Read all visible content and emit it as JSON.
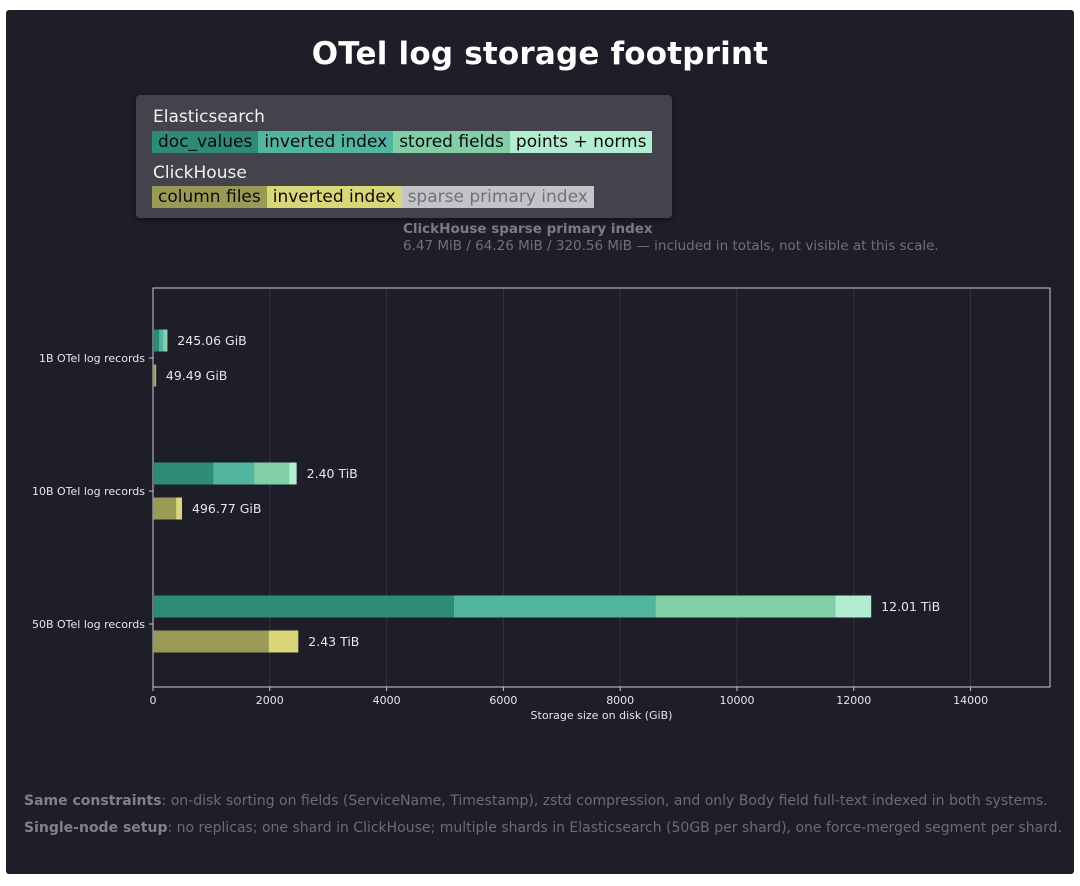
{
  "title": "OTel log storage footprint",
  "legend": {
    "groups": [
      {
        "name": "Elasticsearch",
        "items": [
          {
            "label": "doc_values",
            "color": "#2e8b78",
            "text_color": "#0b0b0b"
          },
          {
            "label": "inverted index",
            "color": "#52b5a0",
            "text_color": "#0b0b0b"
          },
          {
            "label": "stored fields",
            "color": "#80cfa6",
            "text_color": "#0b0b0b"
          },
          {
            "label": "points + norms",
            "color": "#b2edd2",
            "text_color": "#0b0b0b"
          }
        ]
      },
      {
        "name": "ClickHouse",
        "items": [
          {
            "label": "column files",
            "color": "#9a9a57",
            "text_color": "#0b0b0b"
          },
          {
            "label": "inverted index",
            "color": "#d8d878",
            "text_color": "#0b0b0b"
          },
          {
            "label": "sparse primary index",
            "color": "#c3c4c8",
            "text_color": "#70717a"
          }
        ]
      }
    ]
  },
  "note": {
    "heading": "ClickHouse sparse primary index",
    "text": "6.47 MiB / 64.26 MiB / 320.56 MiB — included in totals, not visible at this scale."
  },
  "chart_data": {
    "type": "bar",
    "orientation": "horizontal",
    "stacked": true,
    "xlabel": "Storage size on disk (GiB)",
    "xlim": [
      0,
      15360
    ],
    "xticks": [
      0,
      2000,
      4000,
      6000,
      8000,
      10000,
      12000,
      14000
    ],
    "grid": "vertical",
    "categories": [
      "1B OTel log records",
      "10B OTel log records",
      "50B OTel log records"
    ],
    "bars": [
      {
        "category": 0,
        "system": "Elasticsearch",
        "label": "245.06 GiB",
        "segments": [
          {
            "name": "doc_values",
            "value": 102
          },
          {
            "name": "inverted index",
            "value": 70
          },
          {
            "name": "stored fields",
            "value": 60
          },
          {
            "name": "points + norms",
            "value": 13
          }
        ]
      },
      {
        "category": 0,
        "system": "ClickHouse",
        "label": "49.49 GiB",
        "segments": [
          {
            "name": "column files",
            "value": 39.5
          },
          {
            "name": "inverted index",
            "value": 10
          }
        ]
      },
      {
        "category": 1,
        "system": "Elasticsearch",
        "label": "2.40 TiB",
        "segments": [
          {
            "name": "doc_values",
            "value": 1030
          },
          {
            "name": "inverted index",
            "value": 700
          },
          {
            "name": "stored fields",
            "value": 600
          },
          {
            "name": "points + norms",
            "value": 130
          }
        ]
      },
      {
        "category": 1,
        "system": "ClickHouse",
        "label": "496.77 GiB",
        "segments": [
          {
            "name": "column files",
            "value": 395
          },
          {
            "name": "inverted index",
            "value": 102
          }
        ]
      },
      {
        "category": 2,
        "system": "Elasticsearch",
        "label": "12.01 TiB",
        "segments": [
          {
            "name": "doc_values",
            "value": 5150
          },
          {
            "name": "inverted index",
            "value": 3450
          },
          {
            "name": "stored fields",
            "value": 3080
          },
          {
            "name": "points + norms",
            "value": 618
          }
        ]
      },
      {
        "category": 2,
        "system": "ClickHouse",
        "label": "2.43 TiB",
        "segments": [
          {
            "name": "column files",
            "value": 1980
          },
          {
            "name": "inverted index",
            "value": 508
          }
        ]
      }
    ]
  },
  "footer": [
    {
      "bold": "Same constraints",
      "text": ": on-disk sorting on fields (ServiceName, Timestamp), zstd compression, and only Body field full-text indexed in both systems."
    },
    {
      "bold": "Single-node setup",
      "text": ": no replicas; one shard in ClickHouse; multiple shards in Elasticsearch (50GB per shard), one force-merged segment per shard."
    }
  ]
}
